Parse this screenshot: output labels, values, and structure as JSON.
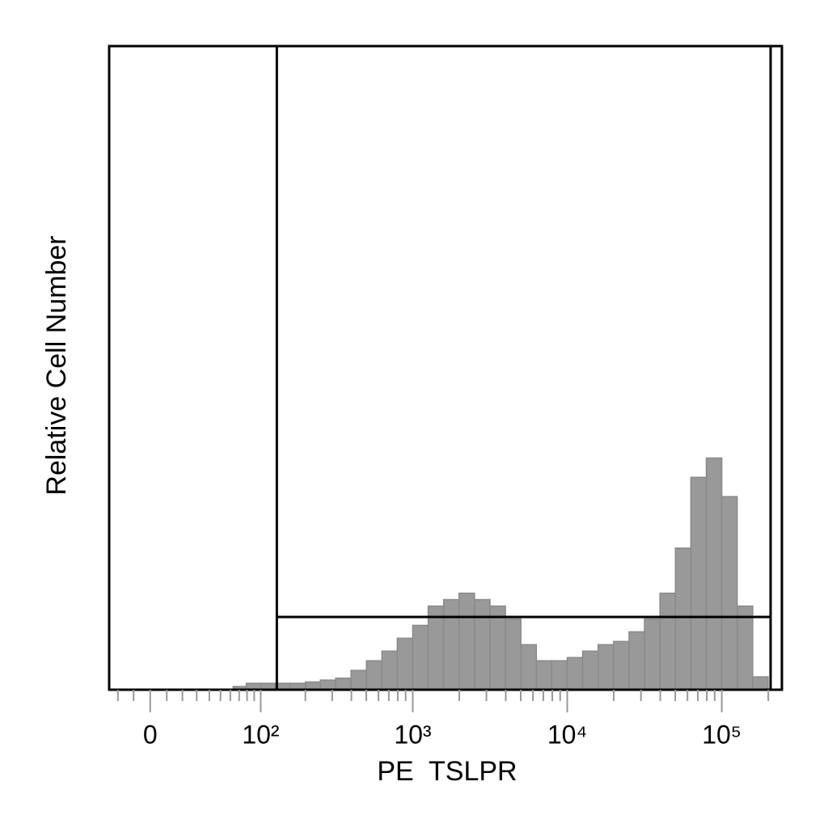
{
  "chart_data": {
    "type": "histogram",
    "x_label": "PE  TSLPR",
    "y_label": "Relative Cell Number",
    "xscale": "biexponential",
    "xlim": [
      -26,
      245000
    ],
    "ylim": [
      0,
      100
    ],
    "xticks": [
      0,
      {
        "value": 100,
        "label": "10²"
      },
      {
        "value": 1000,
        "label": "10³"
      },
      {
        "value": 10000,
        "label": "10⁴"
      },
      {
        "value": 100000,
        "label": "10⁵"
      }
    ],
    "xminorticks": [
      -20,
      -10,
      10,
      20,
      30,
      40,
      50,
      60,
      70,
      80,
      90,
      200,
      300,
      400,
      500,
      600,
      700,
      800,
      900,
      2000,
      3000,
      4000,
      5000,
      6000,
      7000,
      8000,
      9000,
      20000,
      30000,
      40000,
      50000,
      60000,
      70000,
      80000,
      90000,
      200000
    ],
    "color": "#999999",
    "edge_color": "#8a8a8a",
    "bins": [
      63,
      79,
      100,
      126,
      158,
      200,
      251,
      316,
      398,
      501,
      631,
      794,
      1000,
      1259,
      1585,
      1995,
      2512,
      3162,
      3981,
      5012,
      6310,
      7943,
      10000,
      12589,
      15849,
      19953,
      25119,
      31623,
      39811,
      50119,
      63096,
      79433,
      100000,
      125893,
      158489,
      199526
    ],
    "values": [
      0.5,
      1,
      1,
      1,
      1,
      1.2,
      1.5,
      1.8,
      3,
      4.5,
      6,
      8,
      10,
      13,
      14,
      15,
      14,
      13,
      11,
      7,
      4.5,
      4.5,
      5,
      6,
      7,
      7.5,
      9,
      11,
      15,
      22,
      33,
      36,
      30,
      13,
      2
    ],
    "gate": {
      "x": [
        129,
        207000
      ],
      "y": 11.3
    }
  }
}
